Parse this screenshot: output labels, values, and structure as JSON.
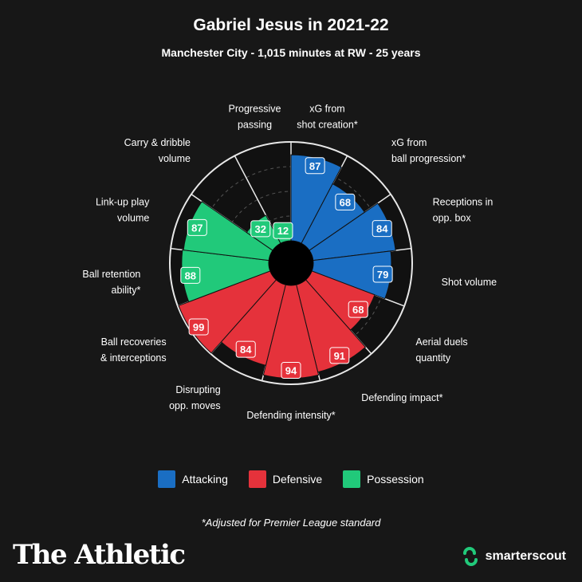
{
  "header": {
    "title": "Gabriel Jesus in 2021-22",
    "subtitle": "Manchester City - 1,015 minutes at RW - 25 years"
  },
  "colors": {
    "background": "#171717",
    "attacking": "#1a6ec3",
    "defensive": "#e5323b",
    "possession": "#21c97a",
    "grid": "#555555"
  },
  "chart_data": {
    "type": "polar-bar",
    "title": "Gabriel Jesus in 2021-22",
    "subtitle": "Manchester City - 1,015 minutes at RW - 25 years",
    "rlim": [
      0,
      100
    ],
    "grid": true,
    "legend_placement": "bottom-center",
    "series": [
      {
        "name": "Attacking",
        "color": "#1a6ec3"
      },
      {
        "name": "Defensive",
        "color": "#e5323b"
      },
      {
        "name": "Possession",
        "color": "#21c97a"
      }
    ],
    "metrics": [
      {
        "label": "xG from\nshot creation*",
        "value": 87,
        "group": "Attacking"
      },
      {
        "label": "xG from\nball progression*",
        "value": 68,
        "group": "Attacking"
      },
      {
        "label": "Receptions in\nopp. box",
        "value": 84,
        "group": "Attacking"
      },
      {
        "label": "Shot volume",
        "value": 79,
        "group": "Attacking"
      },
      {
        "label": "Aerial duels\nquantity",
        "value": 68,
        "group": "Defensive"
      },
      {
        "label": "Defending impact*",
        "value": 91,
        "group": "Defensive"
      },
      {
        "label": "Defending intensity*",
        "value": 94,
        "group": "Defensive"
      },
      {
        "label": "Disrupting\nopp. moves",
        "value": 84,
        "group": "Defensive"
      },
      {
        "label": "Ball recoveries\n& interceptions",
        "value": 99,
        "group": "Defensive"
      },
      {
        "label": "Ball retention\nability*",
        "value": 88,
        "group": "Possession"
      },
      {
        "label": "Link-up play\nvolume",
        "value": 87,
        "group": "Possession"
      },
      {
        "label": "Carry & dribble\nvolume",
        "value": 32,
        "group": "Possession"
      },
      {
        "label": "Progressive\npassing",
        "value": 12,
        "group": "Possession"
      }
    ]
  },
  "legend": {
    "attacking": "Attacking",
    "defensive": "Defensive",
    "possession": "Possession"
  },
  "footnote": "*Adjusted for Premier League standard",
  "branding": {
    "publisher": "The Athletic",
    "partner": "smarterscout"
  }
}
